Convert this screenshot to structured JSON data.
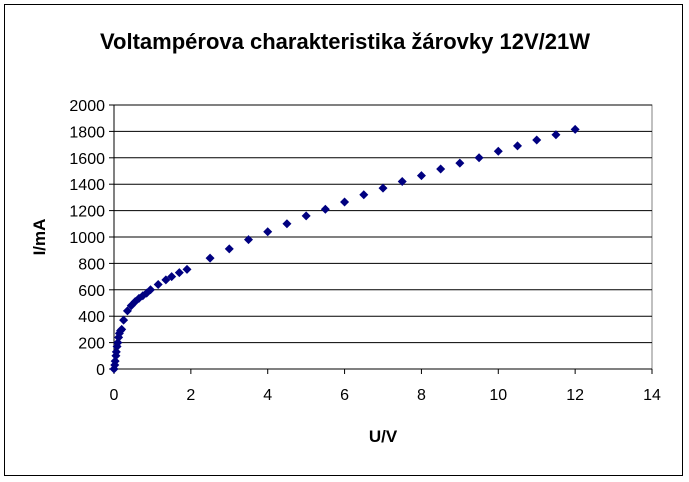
{
  "chart_data": {
    "type": "scatter",
    "title": "Voltampérova charakteristika žárovky 12V/21W",
    "xlabel": "U/V",
    "ylabel": "I/mA",
    "xlim": [
      0,
      14
    ],
    "ylim": [
      0,
      2000
    ],
    "xticks": [
      0,
      2,
      4,
      6,
      8,
      10,
      12,
      14
    ],
    "yticks": [
      0,
      200,
      400,
      600,
      800,
      1000,
      1200,
      1400,
      1600,
      1800,
      2000
    ],
    "grid": "horizontal",
    "marker": "diamond",
    "color": "#000080",
    "series": [
      {
        "points": [
          [
            0.0,
            0
          ],
          [
            0.02,
            30
          ],
          [
            0.03,
            60
          ],
          [
            0.05,
            100
          ],
          [
            0.06,
            130
          ],
          [
            0.08,
            170
          ],
          [
            0.1,
            200
          ],
          [
            0.12,
            240
          ],
          [
            0.14,
            270
          ],
          [
            0.17,
            290
          ],
          [
            0.2,
            300
          ],
          [
            0.25,
            370
          ],
          [
            0.35,
            440
          ],
          [
            0.45,
            480
          ],
          [
            0.55,
            510
          ],
          [
            0.65,
            535
          ],
          [
            0.75,
            555
          ],
          [
            0.85,
            575
          ],
          [
            0.95,
            600
          ],
          [
            1.15,
            640
          ],
          [
            1.35,
            675
          ],
          [
            1.5,
            700
          ],
          [
            1.7,
            730
          ],
          [
            1.9,
            755
          ],
          [
            2.5,
            840
          ],
          [
            3.0,
            910
          ],
          [
            3.5,
            980
          ],
          [
            4.0,
            1040
          ],
          [
            4.5,
            1100
          ],
          [
            5.0,
            1160
          ],
          [
            5.5,
            1210
          ],
          [
            6.0,
            1265
          ],
          [
            6.5,
            1320
          ],
          [
            7.0,
            1370
          ],
          [
            7.5,
            1420
          ],
          [
            8.0,
            1465
          ],
          [
            8.5,
            1515
          ],
          [
            9.0,
            1560
          ],
          [
            9.5,
            1600
          ],
          [
            10.0,
            1650
          ],
          [
            10.5,
            1690
          ],
          [
            11.0,
            1735
          ],
          [
            11.5,
            1775
          ],
          [
            12.0,
            1815
          ]
        ]
      }
    ]
  }
}
